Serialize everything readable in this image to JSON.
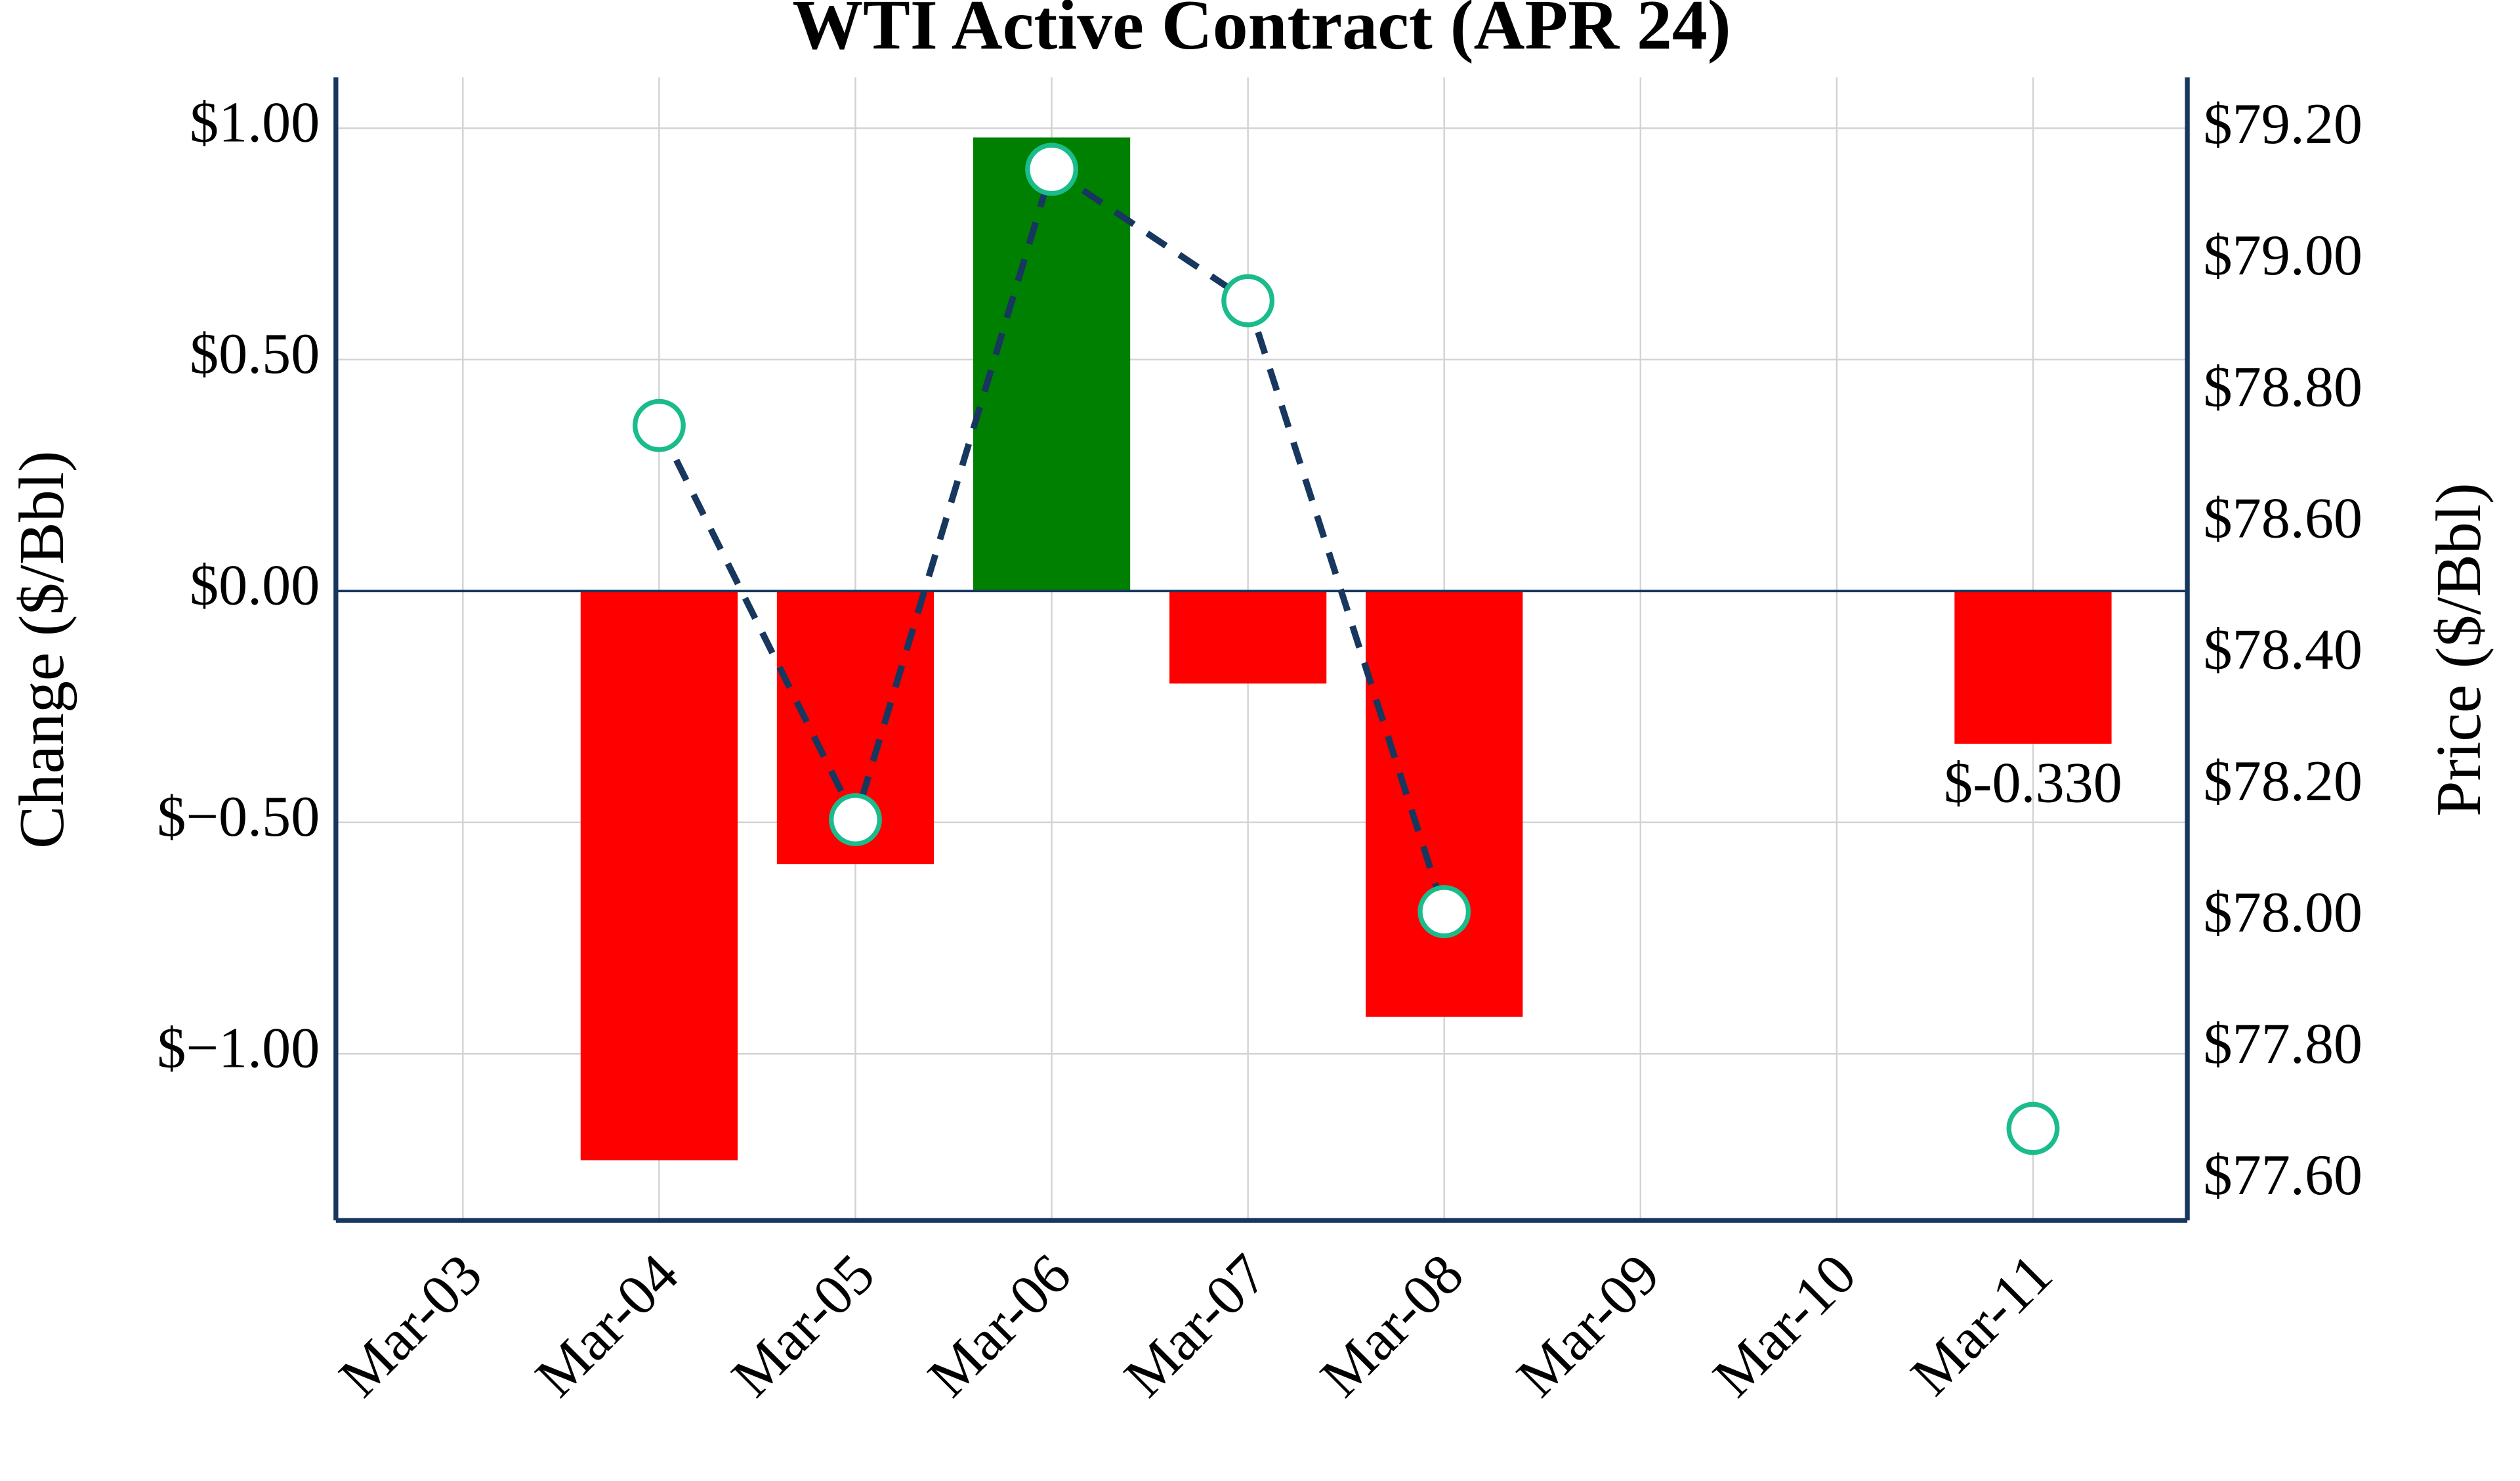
{
  "chart_data": {
    "type": "combo",
    "title": "WTI Active Contract (APR 24)",
    "y_label": "Change ($/Bbl)",
    "y2_label": "Price ($/Bbl)",
    "categories": [
      "Mar-03",
      "Mar-04",
      "Mar-05",
      "Mar-06",
      "Mar-07",
      "Mar-08",
      "Mar-09",
      "Mar-10",
      "Mar-11"
    ],
    "ylim": [
      -1.36,
      1.11
    ],
    "yticks": [
      {
        "value": 1.0,
        "label": "$1.00"
      },
      {
        "value": 0.5,
        "label": "$0.50"
      },
      {
        "value": 0,
        "label": "$0.00"
      },
      {
        "value": -0.5,
        "label": "$−0.50"
      },
      {
        "value": -1.0,
        "label": "$−1.00"
      }
    ],
    "y2lim": [
      77.54,
      79.28
    ],
    "y2ticks": [
      {
        "value": 77.6,
        "label": "$77.60"
      },
      {
        "value": 77.8,
        "label": "$77.80"
      },
      {
        "value": 78.0,
        "label": "$78.00"
      },
      {
        "value": 78.2,
        "label": "$78.20"
      },
      {
        "value": 78.4,
        "label": "$78.40"
      },
      {
        "value": 78.6,
        "label": "$78.60"
      },
      {
        "value": 78.8,
        "label": "$78.80"
      },
      {
        "value": 79.0,
        "label": "$79.00"
      },
      {
        "value": 79.2,
        "label": "$79.20"
      }
    ],
    "grid": true,
    "series": [
      {
        "type": "bar",
        "positive_color": "#008000",
        "negative_color": "#ff0000",
        "values": [
          null,
          -1.23,
          -0.59,
          0.98,
          -0.2,
          -0.92,
          null,
          null,
          -0.33
        ],
        "value_labels": [
          null,
          null,
          null,
          null,
          null,
          null,
          null,
          null,
          "$-0.330"
        ]
      },
      {
        "type": "line",
        "axis": "y2",
        "color": "#17375e",
        "marker_color": "#1abc8c",
        "values": [
          null,
          78.75,
          78.15,
          79.14,
          78.94,
          78.01,
          null,
          null,
          77.68
        ]
      }
    ]
  }
}
